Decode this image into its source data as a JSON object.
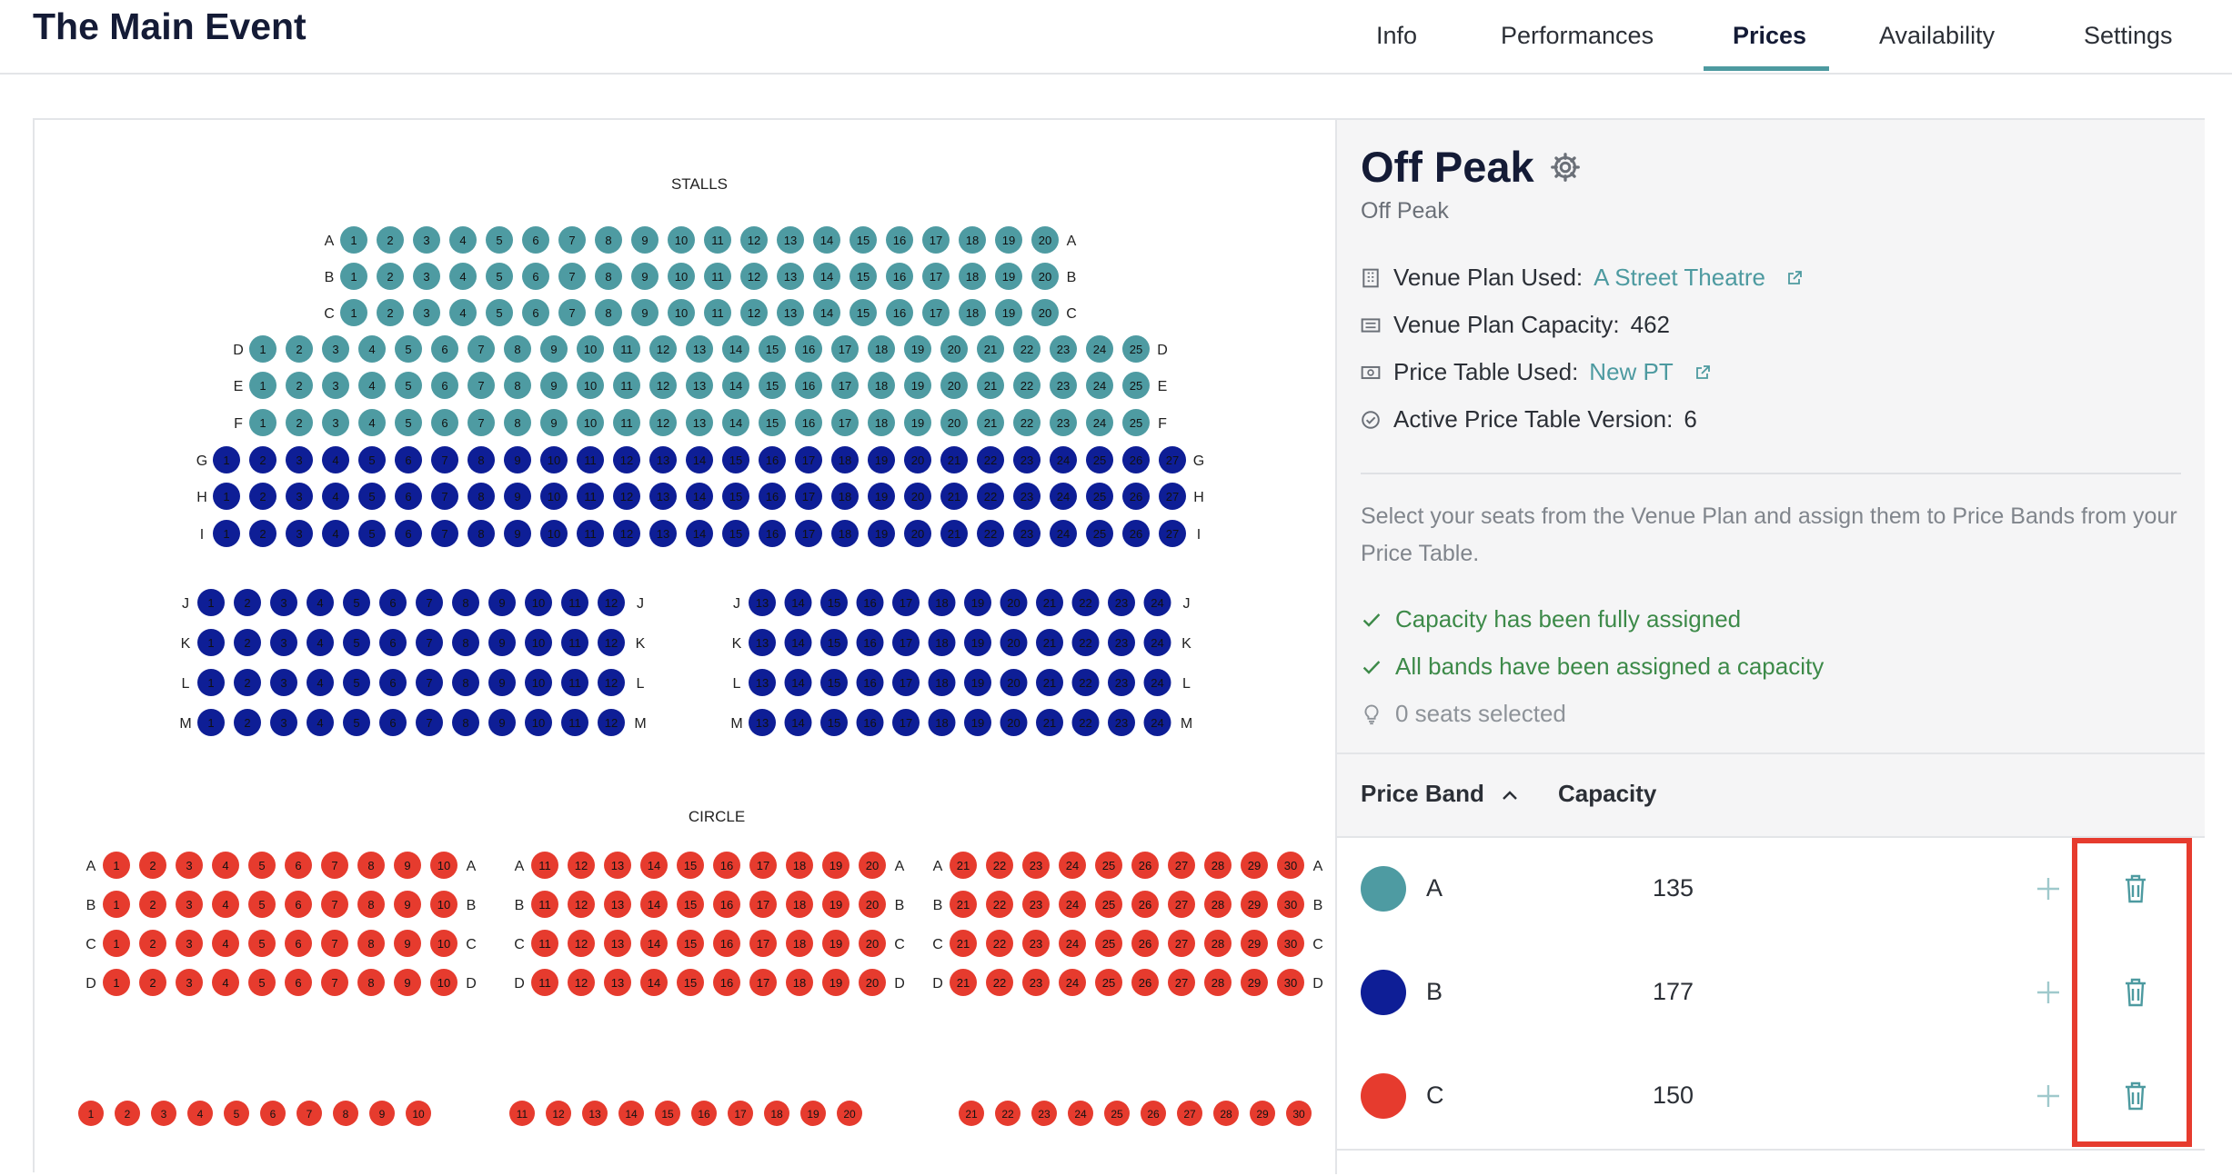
{
  "header": {
    "title": "The Main Event",
    "tabs": [
      {
        "label": "Info",
        "active": false
      },
      {
        "label": "Performances",
        "active": false
      },
      {
        "label": "Prices",
        "active": true
      },
      {
        "label": "Availability",
        "active": false
      },
      {
        "label": "Settings",
        "active": false
      }
    ]
  },
  "seat_map": {
    "stalls_label": "STALLS",
    "circle_label": "CIRCLE",
    "stalls": {
      "upper_rows": [
        {
          "row": "A",
          "seats": 20,
          "band": "A"
        },
        {
          "row": "B",
          "seats": 20,
          "band": "A"
        },
        {
          "row": "C",
          "seats": 20,
          "band": "A"
        },
        {
          "row": "D",
          "seats": 25,
          "band": "A"
        },
        {
          "row": "E",
          "seats": 25,
          "band": "A"
        },
        {
          "row": "F",
          "seats": 25,
          "band": "A"
        },
        {
          "row": "G",
          "seats": 27,
          "band": "B"
        },
        {
          "row": "H",
          "seats": 27,
          "band": "B"
        },
        {
          "row": "I",
          "seats": 27,
          "band": "B"
        }
      ],
      "lower_rows": [
        "J",
        "K",
        "L",
        "M"
      ],
      "lower_left_seats": [
        1,
        12
      ],
      "lower_right_seats": [
        13,
        24
      ]
    },
    "circle": {
      "rows": [
        "A",
        "B",
        "C",
        "D"
      ],
      "blocks": [
        [
          1,
          10
        ],
        [
          11,
          20
        ],
        [
          21,
          30
        ]
      ],
      "unlabeled_row_blocks": [
        [
          1,
          10
        ],
        [
          11,
          20
        ],
        [
          21,
          30
        ]
      ]
    }
  },
  "panel": {
    "band_title": "Off Peak",
    "band_subtitle": "Off Peak",
    "venue_plan_label": "Venue Plan Used:",
    "venue_plan_value": "A Street Theatre",
    "capacity_label": "Venue Plan Capacity:",
    "capacity_value": "462",
    "price_table_label": "Price Table Used:",
    "price_table_value": "New PT",
    "version_label": "Active Price Table Version:",
    "version_value": "6",
    "description": "Select your seats from the Venue Plan and assign them to Price Bands from your Price Table.",
    "status_capacity": "Capacity has been fully assigned",
    "status_bands": "All bands have been assigned a capacity",
    "status_selected": "0 seats selected"
  },
  "table": {
    "col_band": "Price Band",
    "col_capacity": "Capacity",
    "rows": [
      {
        "band": "A",
        "capacity": "135",
        "color": "#4e9ba2"
      },
      {
        "band": "B",
        "capacity": "177",
        "color": "#0e1e96"
      },
      {
        "band": "C",
        "capacity": "150",
        "color": "#e63b2e"
      }
    ]
  },
  "colors": {
    "accent": "#4d9aa0",
    "band_a": "#4e9ba2",
    "band_b": "#0e1e96",
    "band_c": "#e63b2e",
    "highlight": "#e63b2e",
    "success": "#3d8a49"
  }
}
